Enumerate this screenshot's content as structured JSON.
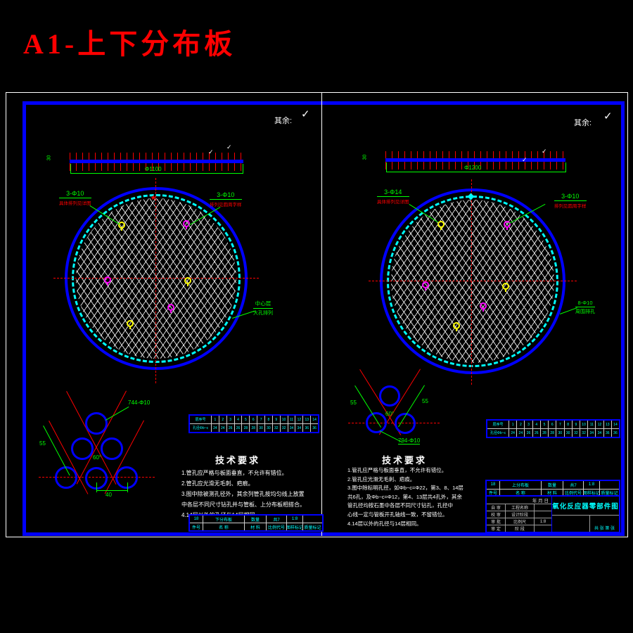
{
  "page_title": "A1-上下分布板",
  "surface": {
    "label": "其余:",
    "symbol": "✓"
  },
  "left": {
    "part_name": "下分布板",
    "top_dim": "Φ1100",
    "thickness_dim": "30",
    "label_left_l1": "3-Φ10",
    "label_left_l2": "具体排列见详图",
    "label_right_l1": "3-Φ10",
    "label_right_l2": "排列见圆周字样",
    "label_mid_l1": "中心层",
    "label_mid_l2": "大孔排列",
    "detail_leader": "744-Φ10",
    "detail_dim_side": "55",
    "detail_dim_angle": "60°",
    "detail_dim_bottom": "40",
    "table_r1": [
      "层序号",
      "1",
      "2",
      "3",
      "4",
      "5",
      "6",
      "7",
      "8",
      "9",
      "10",
      "11",
      "12",
      "13",
      "14"
    ],
    "table_r2": [
      "孔径Φb~c",
      "24",
      "24",
      "26",
      "26",
      "28",
      "28",
      "30",
      "30",
      "32",
      "32",
      "34",
      "34",
      "36",
      "36"
    ],
    "tech_title": "技术要求",
    "tech_lines": [
      "1.管孔应严格与板面垂直，不允许有错位。",
      "2.管孔应光滑无毛刺、疤痕。",
      "3.图中除被测孔径外，其余列管孔按均匀线上放置",
      "中各层不同尺寸钻孔并与管板、上分布板相搭合。",
      "4.14层以外的孔径与14层相同。"
    ],
    "strip_r1": [
      "18",
      "下分布板",
      "数量",
      "共7",
      "1:8",
      ""
    ],
    "strip_r2": [
      "件号",
      "名  称",
      "材  料",
      "比例代号",
      "图样标记",
      "质量标记"
    ]
  },
  "right": {
    "part_name": "上分布板",
    "top_dim": "Φ1200",
    "thickness_dim": "30",
    "label_left_l1": "3-Φ14",
    "label_left_l2": "具体排列见详图",
    "label_right_l1": "3-Φ10",
    "label_right_l2": "排列见圆周字样",
    "label_mid_l1": "8-Φ10",
    "label_mid_l2": "周围排孔",
    "detail_leader": "794-Φ10",
    "detail_dim_side_l": "55",
    "detail_dim_side_r": "55",
    "detail_dim_angle": "60°",
    "table_r1": [
      "层序号",
      "1",
      "2",
      "3",
      "4",
      "5",
      "6",
      "7",
      "8",
      "9",
      "10",
      "11",
      "12",
      "13",
      "14"
    ],
    "table_r2": [
      "孔径Φb~c",
      "24",
      "24",
      "26",
      "26",
      "28",
      "28",
      "30",
      "30",
      "32",
      "32",
      "34",
      "34",
      "36",
      "36"
    ],
    "tech_title": "技术要求",
    "tech_lines": [
      "1.管孔应严格与板面垂直，不允许有错位。",
      "2.管孔应光滑无毛刺、疤痕。",
      "3.图中除标明孔径，如Φb~c=Φ22，第3、8、14层",
      "共6孔，及Φb~c=Φ12，第4、13层共4孔外，其余",
      "管孔径均按石墨中各层不同尺寸钻孔，孔径中",
      "心线一定与管板开孔轴线一致，不留错位。",
      "4.14层以外的孔径与14层相同。"
    ],
    "strip_r1": [
      "18",
      "上分布板",
      "数量",
      "共7",
      "1:8",
      ""
    ],
    "strip_r2": [
      "件号",
      "名  称",
      "材  料",
      "比例代号",
      "图样标记",
      "质量标记"
    ],
    "titleblock": {
      "date": "年 月 日",
      "rows": [
        [
          "自 审",
          "工程名称",
          ""
        ],
        [
          "校 审",
          "设计阶段",
          ""
        ],
        [
          "审 批",
          "比例尺",
          "1:8"
        ],
        [
          "审 定",
          "阶 段",
          ""
        ]
      ],
      "title": "氧化反应器零部件图",
      "sheet": "共 张 第 张"
    }
  },
  "colors": {
    "frame_blue": "#0000ff",
    "hatch_white": "#ffffff",
    "scallop_cyan": "#00ffff",
    "dimension_green": "#00ff00",
    "centerline_red": "#ff0000",
    "marker_yellow": "#ffff00",
    "marker_magenta": "#ff00ff",
    "title_red": "#ff0000"
  }
}
